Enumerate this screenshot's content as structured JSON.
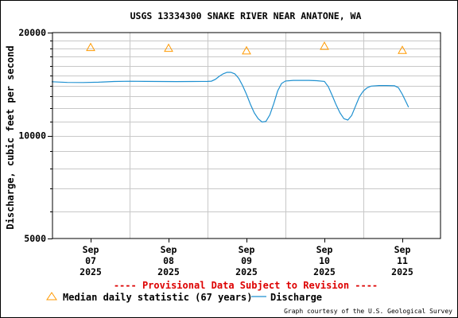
{
  "chart_data": {
    "type": "line",
    "title": "USGS 13334300 SNAKE RIVER NEAR ANATONE, WA",
    "ylabel": "Discharge, cubic feet per second",
    "y_scale": "log",
    "ylim": [
      5000,
      20000
    ],
    "y_ticks": [
      {
        "value": 5000,
        "label": "5000"
      },
      {
        "value": 10000,
        "label": "10000"
      },
      {
        "value": 20000,
        "label": "20000"
      }
    ],
    "x_ticks": [
      {
        "label": [
          "Sep",
          "07",
          "2025"
        ]
      },
      {
        "label": [
          "Sep",
          "08",
          "2025"
        ]
      },
      {
        "label": [
          "Sep",
          "09",
          "2025"
        ]
      },
      {
        "label": [
          "Sep",
          "10",
          "2025"
        ]
      },
      {
        "label": [
          "Sep",
          "11",
          "2025"
        ]
      }
    ],
    "grid": true,
    "series": [
      {
        "name": "Discharge",
        "color": "#1e90d0",
        "points": [
          [
            -0.5,
            14370
          ],
          [
            -0.3,
            14300
          ],
          [
            -0.1,
            14290
          ],
          [
            0.1,
            14320
          ],
          [
            0.3,
            14390
          ],
          [
            0.5,
            14410
          ],
          [
            0.7,
            14400
          ],
          [
            0.9,
            14390
          ],
          [
            1.1,
            14380
          ],
          [
            1.3,
            14390
          ],
          [
            1.5,
            14400
          ],
          [
            1.55,
            14420
          ],
          [
            1.6,
            14600
          ],
          [
            1.65,
            14900
          ],
          [
            1.7,
            15150
          ],
          [
            1.75,
            15300
          ],
          [
            1.8,
            15300
          ],
          [
            1.85,
            15150
          ],
          [
            1.9,
            14700
          ],
          [
            1.95,
            14000
          ],
          [
            2.0,
            13200
          ],
          [
            2.05,
            12350
          ],
          [
            2.1,
            11650
          ],
          [
            2.15,
            11200
          ],
          [
            2.2,
            10950
          ],
          [
            2.25,
            11000
          ],
          [
            2.3,
            11500
          ],
          [
            2.35,
            12400
          ],
          [
            2.4,
            13500
          ],
          [
            2.45,
            14200
          ],
          [
            2.5,
            14440
          ],
          [
            2.6,
            14500
          ],
          [
            2.7,
            14500
          ],
          [
            2.8,
            14500
          ],
          [
            2.9,
            14470
          ],
          [
            3.0,
            14400
          ],
          [
            3.05,
            13900
          ],
          [
            3.1,
            13100
          ],
          [
            3.15,
            12300
          ],
          [
            3.2,
            11650
          ],
          [
            3.25,
            11200
          ],
          [
            3.3,
            11100
          ],
          [
            3.35,
            11450
          ],
          [
            3.4,
            12200
          ],
          [
            3.45,
            13000
          ],
          [
            3.5,
            13500
          ],
          [
            3.55,
            13800
          ],
          [
            3.6,
            13950
          ],
          [
            3.7,
            14000
          ],
          [
            3.8,
            14000
          ],
          [
            3.9,
            13980
          ],
          [
            3.95,
            13800
          ],
          [
            4.0,
            13200
          ],
          [
            4.05,
            12500
          ],
          [
            4.08,
            12100
          ]
        ]
      }
    ],
    "median_points": [
      {
        "x": 0,
        "y": 18100
      },
      {
        "x": 1,
        "y": 18000
      },
      {
        "x": 2,
        "y": 17700
      },
      {
        "x": 3,
        "y": 18250
      },
      {
        "x": 4,
        "y": 17750
      }
    ],
    "median_color": "#ff9900",
    "provisional_note": "---- Provisional Data Subject to Revision ----",
    "provisional_color": "#dd0000",
    "legend": {
      "median_label": "Median daily statistic (67 years)",
      "discharge_label": "Discharge"
    },
    "credit": "Graph courtesy of the U.S. Geological Survey"
  }
}
